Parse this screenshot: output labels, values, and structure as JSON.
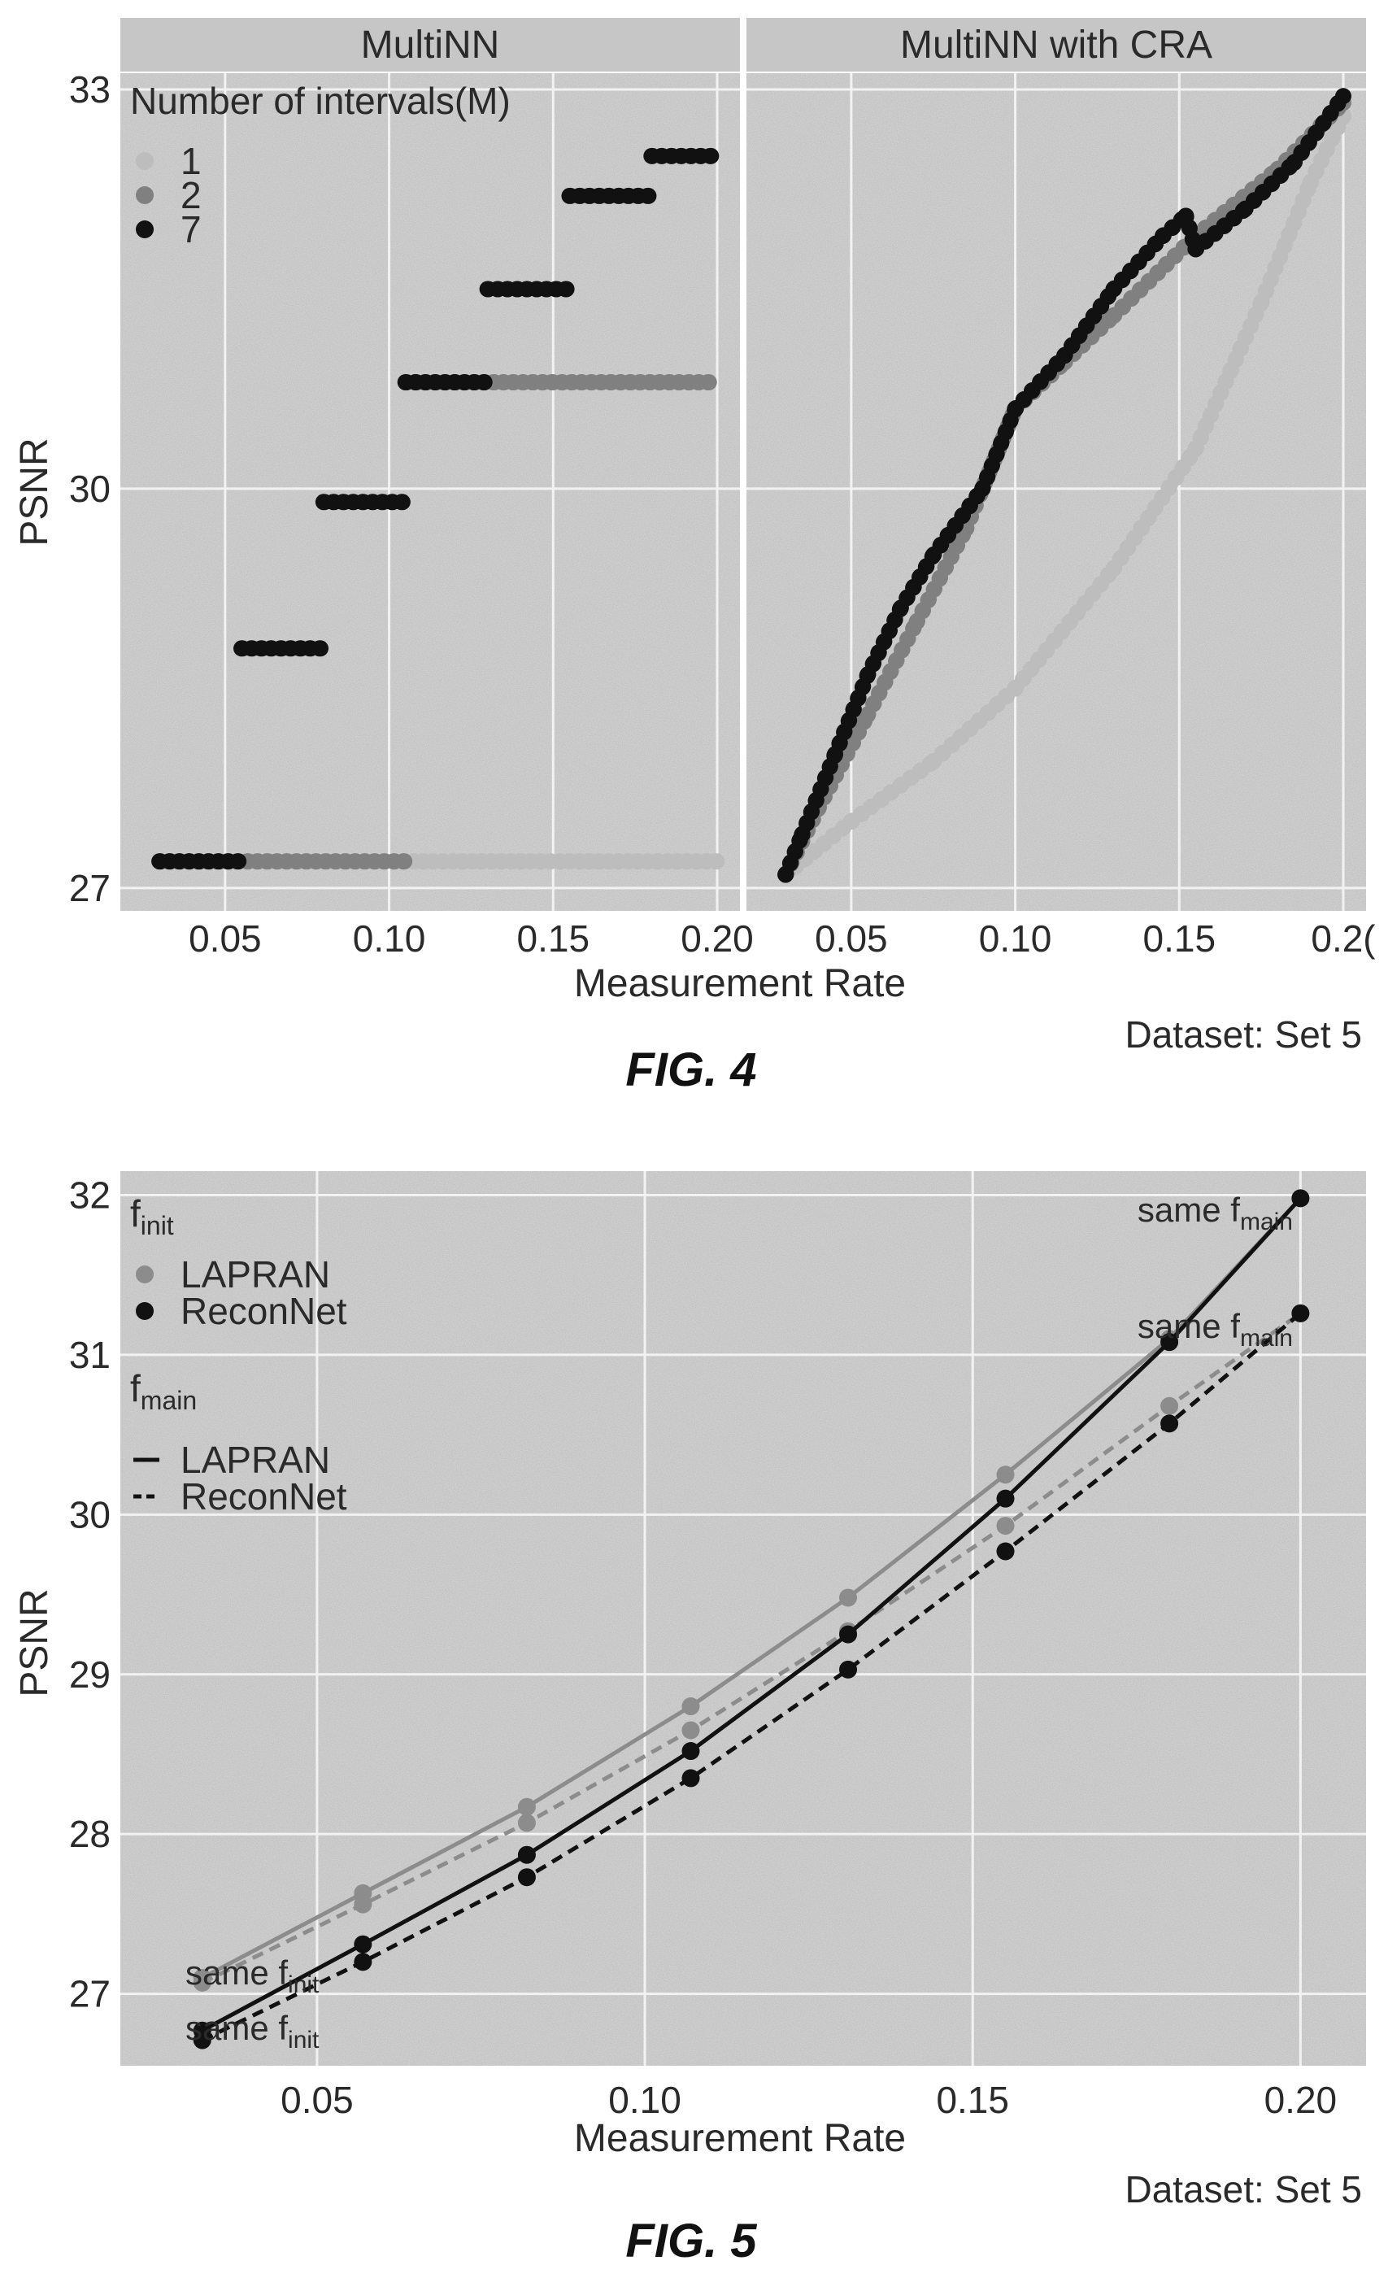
{
  "chart_data": [
    {
      "type": "scatter",
      "figure_label": "FIG. 4",
      "dataset_note": "Dataset: Set 5",
      "xlabel": "Measurement Rate",
      "ylabel": "PSNR",
      "xlim": [
        0.025,
        0.2
      ],
      "ylim": [
        26.95,
        33.0
      ],
      "x_ticks": [
        0.05,
        0.1,
        0.15,
        0.2
      ],
      "x_tick_labels": [
        "0.05",
        "0.10",
        "0.15",
        "0.20"
      ],
      "x_tick_labels_right": [
        "0.05",
        "0.10",
        "0.15",
        "0.2("
      ],
      "y_ticks": [
        27,
        30,
        33
      ],
      "y_tick_labels": [
        "27",
        "30",
        "33"
      ],
      "facets": [
        "MultiNN",
        "MultiNN with CRA"
      ],
      "legend": {
        "title": "Number of intervals(M)",
        "placement": "top-left",
        "entries": [
          {
            "label": "1",
            "color": "#bdbdbd"
          },
          {
            "label": "2",
            "color": "#808080"
          },
          {
            "label": "7",
            "color": "#111111"
          }
        ]
      },
      "series": [
        {
          "name": "1",
          "facet": "MultiNN",
          "color": "#bdbdbd",
          "segments": [
            {
              "x0": 0.03,
              "x1": 0.2,
              "y": 27.2
            }
          ]
        },
        {
          "name": "2",
          "facet": "MultiNN",
          "color": "#808080",
          "segments": [
            {
              "x0": 0.03,
              "x1": 0.105,
              "y": 27.2
            },
            {
              "x0": 0.105,
              "x1": 0.2,
              "y": 30.8
            }
          ]
        },
        {
          "name": "7",
          "facet": "MultiNN",
          "color": "#111111",
          "segments": [
            {
              "x0": 0.03,
              "x1": 0.055,
              "y": 27.2
            },
            {
              "x0": 0.055,
              "x1": 0.08,
              "y": 28.8
            },
            {
              "x0": 0.08,
              "x1": 0.105,
              "y": 29.9
            },
            {
              "x0": 0.105,
              "x1": 0.13,
              "y": 30.8
            },
            {
              "x0": 0.13,
              "x1": 0.155,
              "y": 31.5
            },
            {
              "x0": 0.155,
              "x1": 0.18,
              "y": 32.2
            },
            {
              "x0": 0.18,
              "x1": 0.2,
              "y": 32.5
            }
          ]
        },
        {
          "name": "1",
          "facet": "MultiNN with CRA",
          "color": "#bdbdbd",
          "points": [
            [
              0.03,
              27.1
            ],
            [
              0.05,
              27.5
            ],
            [
              0.075,
              27.95
            ],
            [
              0.1,
              28.5
            ],
            [
              0.13,
              29.4
            ],
            [
              0.155,
              30.3
            ],
            [
              0.175,
              31.4
            ],
            [
              0.19,
              32.3
            ],
            [
              0.2,
              32.8
            ]
          ]
        },
        {
          "name": "2",
          "facet": "MultiNN with CRA",
          "color": "#808080",
          "points": [
            [
              0.03,
              27.1
            ],
            [
              0.04,
              27.6
            ],
            [
              0.055,
              28.3
            ],
            [
              0.07,
              29.0
            ],
            [
              0.085,
              29.7
            ],
            [
              0.1,
              30.6
            ],
            [
              0.115,
              30.95
            ],
            [
              0.13,
              31.3
            ],
            [
              0.155,
              31.9
            ],
            [
              0.18,
              32.4
            ],
            [
              0.2,
              32.9
            ]
          ]
        },
        {
          "name": "7",
          "facet": "MultiNN with CRA",
          "color": "#111111",
          "points": [
            [
              0.03,
              27.1
            ],
            [
              0.035,
              27.4
            ],
            [
              0.045,
              28.0
            ],
            [
              0.055,
              28.6
            ],
            [
              0.065,
              29.1
            ],
            [
              0.075,
              29.5
            ],
            [
              0.09,
              30.0
            ],
            [
              0.1,
              30.6
            ],
            [
              0.115,
              31.0
            ],
            [
              0.13,
              31.5
            ],
            [
              0.145,
              31.9
            ],
            [
              0.152,
              32.05
            ],
            [
              0.155,
              31.8
            ],
            [
              0.17,
              32.1
            ],
            [
              0.185,
              32.45
            ],
            [
              0.2,
              32.95
            ]
          ]
        }
      ]
    },
    {
      "type": "line",
      "figure_label": "FIG. 5",
      "dataset_note": "Dataset: Set 5",
      "xlabel": "Measurement Rate",
      "ylabel": "PSNR",
      "xlim": [
        0.02,
        0.21
      ],
      "ylim": [
        26.55,
        32.15
      ],
      "x_ticks": [
        0.05,
        0.1,
        0.15,
        0.2
      ],
      "x_tick_labels": [
        "0.05",
        "0.10",
        "0.15",
        "0.20"
      ],
      "y_ticks": [
        27,
        28,
        29,
        30,
        31,
        32
      ],
      "y_tick_labels": [
        "27",
        "28",
        "29",
        "30",
        "31",
        "32"
      ],
      "x": [
        0.0325,
        0.057,
        0.082,
        0.107,
        0.131,
        0.155,
        0.18,
        0.2
      ],
      "legend": {
        "placement": "top-left",
        "groups": [
          {
            "title": "f",
            "title_sub": "init",
            "kind": "point",
            "entries": [
              {
                "label": "LAPRAN",
                "color": "#8c8c8c"
              },
              {
                "label": "ReconNet",
                "color": "#111111"
              }
            ]
          },
          {
            "title": "f",
            "title_sub": "main",
            "kind": "line",
            "entries": [
              {
                "label": "LAPRAN",
                "dash": "solid"
              },
              {
                "label": "ReconNet",
                "dash": "dashed"
              }
            ]
          }
        ]
      },
      "series": [
        {
          "name": "LAPRAN / LAPRAN",
          "init_color": "#8c8c8c",
          "main_dash": "solid",
          "values": [
            27.1,
            27.63,
            28.17,
            28.8,
            29.48,
            30.25,
            31.1,
            31.98
          ]
        },
        {
          "name": "LAPRAN / ReconNet",
          "init_color": "#8c8c8c",
          "main_dash": "dashed",
          "values": [
            27.07,
            27.56,
            28.07,
            28.65,
            29.27,
            29.93,
            30.68,
            31.26
          ]
        },
        {
          "name": "ReconNet / LAPRAN",
          "init_color": "#111111",
          "main_dash": "solid",
          "values": [
            26.77,
            27.31,
            27.87,
            28.52,
            29.25,
            30.1,
            31.08,
            31.98
          ]
        },
        {
          "name": "ReconNet / ReconNet",
          "init_color": "#111111",
          "main_dash": "dashed",
          "values": [
            26.71,
            27.2,
            27.73,
            28.35,
            29.03,
            29.77,
            30.57,
            31.26
          ]
        }
      ],
      "annotations": [
        {
          "text": "same f",
          "sub": "main",
          "at": "LAPRAN / LAPRAN end"
        },
        {
          "text": "same f",
          "sub": "main",
          "at": "LAPRAN / ReconNet end"
        },
        {
          "text": "same f",
          "sub": "init",
          "at": "LAPRAN start"
        },
        {
          "text": "same f",
          "sub": "init",
          "at": "ReconNet start"
        }
      ]
    }
  ]
}
